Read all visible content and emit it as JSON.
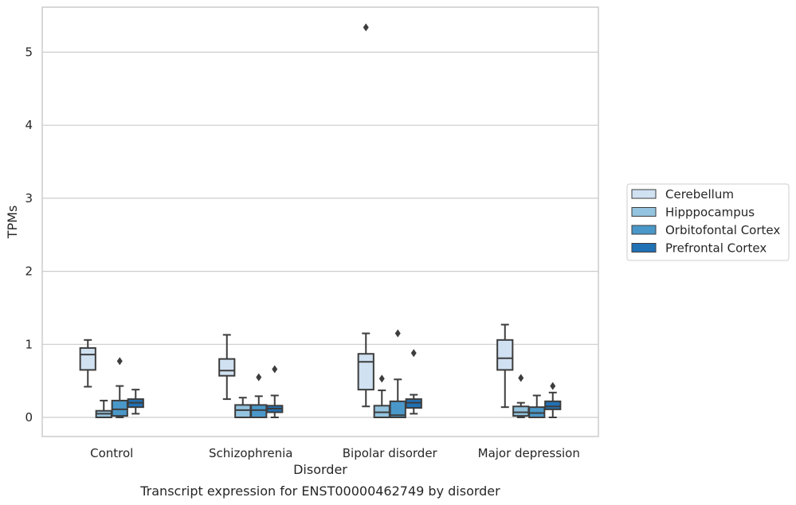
{
  "chart_data": {
    "type": "box",
    "caption": "Transcript expression for ENST00000462749 by disorder",
    "xlabel": "Disorder",
    "ylabel": "TPMs",
    "ylim": [
      -0.25,
      5.6
    ],
    "yticks": [
      0,
      1,
      2,
      3,
      4,
      5
    ],
    "grid": true,
    "legend_position": "right",
    "categories": [
      "Control",
      "Schizophrenia",
      "Bipolar disorder",
      "Major depression"
    ],
    "series": [
      {
        "name": "Cerebellum",
        "color": "#d0e1f2",
        "boxes": [
          {
            "whislo": 0.42,
            "q1": 0.65,
            "med": 0.86,
            "q3": 0.95,
            "whishi": 1.06,
            "fliers": []
          },
          {
            "whislo": 0.25,
            "q1": 0.57,
            "med": 0.64,
            "q3": 0.8,
            "whishi": 1.13,
            "fliers": []
          },
          {
            "whislo": 0.15,
            "q1": 0.38,
            "med": 0.76,
            "q3": 0.87,
            "whishi": 1.15,
            "fliers": [
              5.34
            ]
          },
          {
            "whislo": 0.14,
            "q1": 0.65,
            "med": 0.81,
            "q3": 1.06,
            "whishi": 1.27,
            "fliers": []
          }
        ]
      },
      {
        "name": "Hipppocampus",
        "color": "#94c4df",
        "boxes": [
          {
            "whislo": 0.0,
            "q1": 0.0,
            "med": 0.05,
            "q3": 0.09,
            "whishi": 0.23,
            "fliers": []
          },
          {
            "whislo": 0.0,
            "q1": 0.0,
            "med": 0.1,
            "q3": 0.17,
            "whishi": 0.27,
            "fliers": []
          },
          {
            "whislo": 0.0,
            "q1": 0.0,
            "med": 0.07,
            "q3": 0.16,
            "whishi": 0.37,
            "fliers": [
              0.53
            ]
          },
          {
            "whislo": 0.0,
            "q1": 0.02,
            "med": 0.07,
            "q3": 0.15,
            "whishi": 0.2,
            "fliers": [
              0.54
            ]
          }
        ]
      },
      {
        "name": "Orbitofontal Cortex",
        "color": "#4a98c9",
        "boxes": [
          {
            "whislo": 0.0,
            "q1": 0.02,
            "med": 0.11,
            "q3": 0.23,
            "whishi": 0.43,
            "fliers": [
              0.77
            ]
          },
          {
            "whislo": 0.0,
            "q1": 0.0,
            "med": 0.1,
            "q3": 0.17,
            "whishi": 0.29,
            "fliers": [
              0.55
            ]
          },
          {
            "whislo": 0.0,
            "q1": 0.0,
            "med": 0.03,
            "q3": 0.22,
            "whishi": 0.52,
            "fliers": [
              1.15
            ]
          },
          {
            "whislo": 0.0,
            "q1": 0.0,
            "med": 0.06,
            "q3": 0.14,
            "whishi": 0.3,
            "fliers": []
          }
        ]
      },
      {
        "name": "Prefrontal Cortex",
        "color": "#2171b5",
        "boxes": [
          {
            "whislo": 0.05,
            "q1": 0.14,
            "med": 0.2,
            "q3": 0.25,
            "whishi": 0.38,
            "fliers": []
          },
          {
            "whislo": 0.0,
            "q1": 0.07,
            "med": 0.12,
            "q3": 0.16,
            "whishi": 0.3,
            "fliers": [
              0.66
            ]
          },
          {
            "whislo": 0.05,
            "q1": 0.13,
            "med": 0.2,
            "q3": 0.25,
            "whishi": 0.31,
            "fliers": [
              0.88
            ]
          },
          {
            "whislo": 0.0,
            "q1": 0.11,
            "med": 0.15,
            "q3": 0.22,
            "whishi": 0.34,
            "fliers": [
              0.43
            ]
          }
        ]
      }
    ]
  }
}
